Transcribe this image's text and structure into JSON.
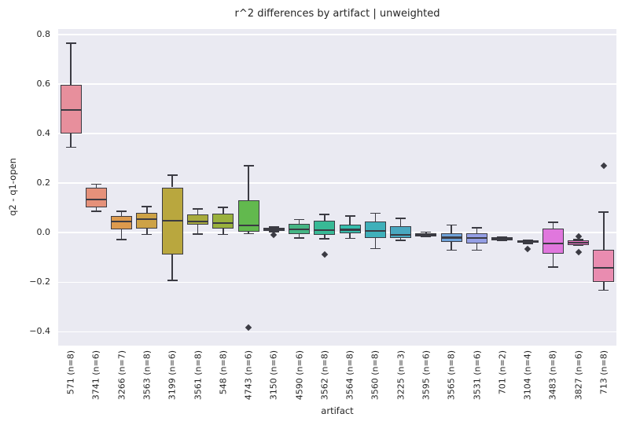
{
  "chart_data": {
    "type": "boxplot",
    "title": "r^2 differences by artifact | unweighted",
    "xlabel": "artifact",
    "ylabel": "q2 - q1-open",
    "ylim": [
      -0.456,
      0.822
    ],
    "yticks": [
      0.8,
      0.6,
      0.4,
      0.2,
      0.0,
      -0.2,
      -0.4
    ],
    "grid": true,
    "legend": "none",
    "style": {
      "axes_bg": "#eaeaf2",
      "grid_color": "#ffffff",
      "edge_color": "#3b3b43",
      "text_color": "#262626"
    },
    "boxes": [
      {
        "label": "571 (n=8)",
        "whislo": 0.345,
        "q1": 0.4,
        "med": 0.495,
        "q3": 0.597,
        "whishi": 0.765,
        "fliers": [],
        "color": "#e78f9c"
      },
      {
        "label": "3741 (n=6)",
        "whislo": 0.086,
        "q1": 0.103,
        "med": 0.135,
        "q3": 0.18,
        "whishi": 0.196,
        "fliers": [],
        "color": "#e5917a"
      },
      {
        "label": "3266 (n=7)",
        "whislo": -0.027,
        "q1": 0.012,
        "med": 0.044,
        "q3": 0.067,
        "whishi": 0.087,
        "fliers": [],
        "color": "#dc9a4d"
      },
      {
        "label": "3563 (n=8)",
        "whislo": -0.007,
        "q1": 0.017,
        "med": 0.054,
        "q3": 0.079,
        "whishi": 0.105,
        "fliers": [],
        "color": "#cda246"
      },
      {
        "label": "3199 (n=6)",
        "whislo": -0.193,
        "q1": -0.087,
        "med": 0.047,
        "q3": 0.183,
        "whishi": 0.233,
        "fliers": [],
        "color": "#b9a73e"
      },
      {
        "label": "3561 (n=8)",
        "whislo": -0.005,
        "q1": 0.032,
        "med": 0.046,
        "q3": 0.073,
        "whishi": 0.096,
        "fliers": [],
        "color": "#a8ab3d"
      },
      {
        "label": "548 (n=8)",
        "whislo": -0.007,
        "q1": 0.015,
        "med": 0.039,
        "q3": 0.076,
        "whishi": 0.103,
        "fliers": [],
        "color": "#9ab13c"
      },
      {
        "label": "4743 (n=6)",
        "whislo": -0.004,
        "q1": 0.005,
        "med": 0.03,
        "q3": 0.132,
        "whishi": 0.27,
        "fliers": [
          -0.383
        ],
        "color": "#62b94e"
      },
      {
        "label": "3150 (n=6)",
        "whislo": 0.003,
        "q1": 0.007,
        "med": 0.013,
        "q3": 0.02,
        "whishi": 0.023,
        "fliers": [
          -0.01
        ],
        "color": "#39bd68"
      },
      {
        "label": "4590 (n=6)",
        "whislo": -0.022,
        "q1": -0.006,
        "med": 0.014,
        "q3": 0.036,
        "whishi": 0.053,
        "fliers": [],
        "color": "#45b584"
      },
      {
        "label": "3562 (n=8)",
        "whislo": -0.025,
        "q1": -0.009,
        "med": 0.01,
        "q3": 0.049,
        "whishi": 0.074,
        "fliers": [
          -0.087
        ],
        "color": "#38ba96"
      },
      {
        "label": "3564 (n=8)",
        "whislo": -0.023,
        "q1": -0.004,
        "med": 0.012,
        "q3": 0.033,
        "whishi": 0.068,
        "fliers": [],
        "color": "#35bcab"
      },
      {
        "label": "3560 (n=8)",
        "whislo": -0.065,
        "q1": -0.02,
        "med": 0.007,
        "q3": 0.044,
        "whishi": 0.078,
        "fliers": [],
        "color": "#3fb0ba"
      },
      {
        "label": "3225 (n=3)",
        "whislo": -0.032,
        "q1": -0.02,
        "med": -0.009,
        "q3": 0.026,
        "whishi": 0.058,
        "fliers": [],
        "color": "#49a8c0"
      },
      {
        "label": "3595 (n=6)",
        "whislo": -0.016,
        "q1": -0.014,
        "med": -0.007,
        "q3": -0.001,
        "whishi": 0.002,
        "fliers": [],
        "color": "#51b5e0"
      },
      {
        "label": "3565 (n=8)",
        "whislo": -0.071,
        "q1": -0.036,
        "med": -0.02,
        "q3": -0.004,
        "whishi": 0.031,
        "fliers": [],
        "color": "#6fa3da"
      },
      {
        "label": "3531 (n=6)",
        "whislo": -0.071,
        "q1": -0.044,
        "med": -0.021,
        "q3": -0.004,
        "whishi": 0.02,
        "fliers": [],
        "color": "#959fe5"
      },
      {
        "label": "701 (n=2)",
        "whislo": -0.032,
        "q1": -0.032,
        "med": -0.025,
        "q3": -0.017,
        "whishi": -0.017,
        "fliers": [],
        "color": "#bd94ee"
      },
      {
        "label": "3104 (n=4)",
        "whislo": -0.043,
        "q1": -0.041,
        "med": -0.036,
        "q3": -0.032,
        "whishi": -0.03,
        "fliers": [
          -0.065
        ],
        "color": "#da86ea"
      },
      {
        "label": "3483 (n=8)",
        "whislo": -0.139,
        "q1": -0.085,
        "med": -0.043,
        "q3": 0.018,
        "whishi": 0.041,
        "fliers": [],
        "color": "#e077dd"
      },
      {
        "label": "3827 (n=6)",
        "whislo": -0.052,
        "q1": -0.051,
        "med": -0.041,
        "q3": -0.03,
        "whishi": -0.028,
        "fliers": [
          -0.014,
          -0.08
        ],
        "color": "#f277c6"
      },
      {
        "label": "713 (n=8)",
        "whislo": -0.232,
        "q1": -0.2,
        "med": -0.142,
        "q3": -0.068,
        "whishi": 0.083,
        "fliers": [
          0.27
        ],
        "color": "#e98cb0"
      }
    ]
  }
}
